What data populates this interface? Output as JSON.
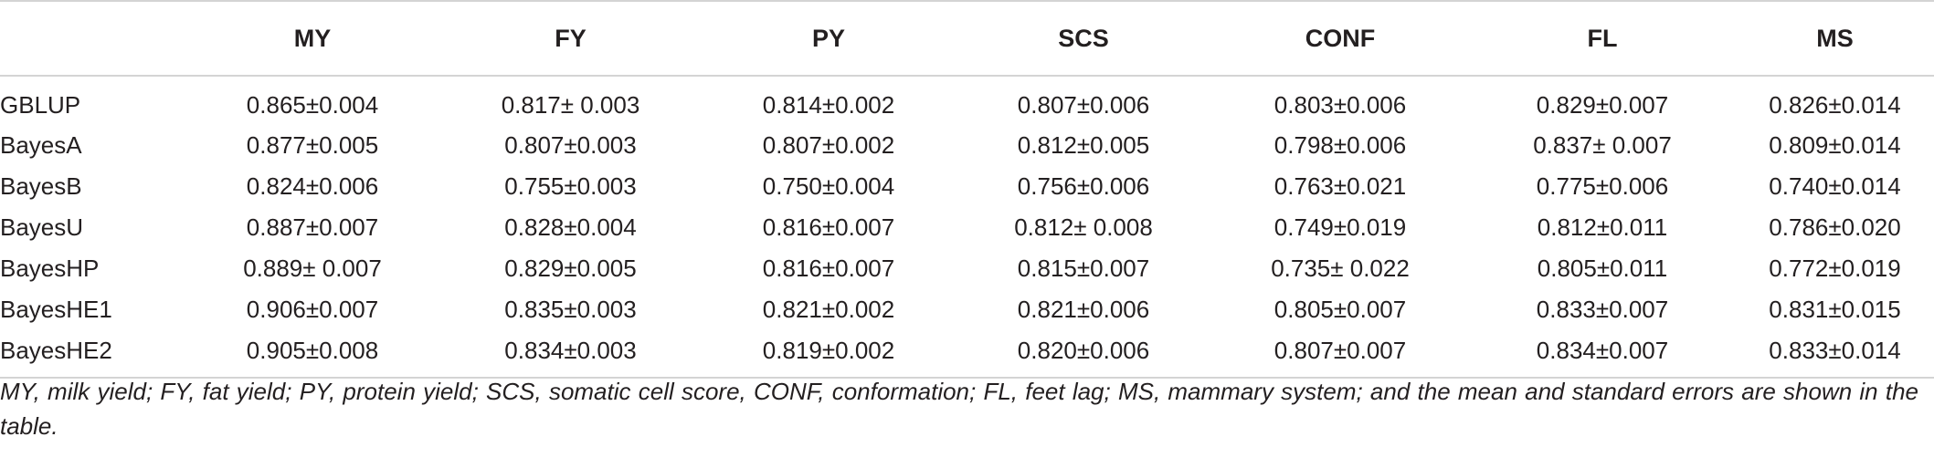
{
  "table": {
    "columns": [
      "",
      "MY",
      "FY",
      "PY",
      "SCS",
      "CONF",
      "FL",
      "MS"
    ],
    "rows": [
      {
        "model": "GBLUP",
        "values": [
          "0.865±0.004",
          "0.817± 0.003",
          "0.814±0.002",
          "0.807±0.006",
          "0.803±0.006",
          "0.829±0.007",
          "0.826±0.014"
        ]
      },
      {
        "model": "BayesA",
        "values": [
          "0.877±0.005",
          "0.807±0.003",
          "0.807±0.002",
          "0.812±0.005",
          "0.798±0.006",
          "0.837± 0.007",
          "0.809±0.014"
        ]
      },
      {
        "model": "BayesB",
        "values": [
          "0.824±0.006",
          "0.755±0.003",
          "0.750±0.004",
          "0.756±0.006",
          "0.763±0.021",
          "0.775±0.006",
          "0.740±0.014"
        ]
      },
      {
        "model": "BayesU",
        "values": [
          "0.887±0.007",
          "0.828±0.004",
          "0.816±0.007",
          "0.812± 0.008",
          "0.749±0.019",
          "0.812±0.011",
          "0.786±0.020"
        ]
      },
      {
        "model": "BayesHP",
        "values": [
          "0.889± 0.007",
          "0.829±0.005",
          "0.816±0.007",
          "0.815±0.007",
          "0.735± 0.022",
          "0.805±0.011",
          "0.772±0.019"
        ]
      },
      {
        "model": "BayesHE1",
        "values": [
          "0.906±0.007",
          "0.835±0.003",
          "0.821±0.002",
          "0.821±0.006",
          "0.805±0.007",
          "0.833±0.007",
          "0.831±0.015"
        ]
      },
      {
        "model": "BayesHE2",
        "values": [
          "0.905±0.008",
          "0.834±0.003",
          "0.819±0.002",
          "0.820±0.006",
          "0.807±0.007",
          "0.834±0.007",
          "0.833±0.014"
        ]
      }
    ]
  },
  "footnote": "MY, milk yield; FY, fat yield; PY, protein yield; SCS, somatic cell score, CONF, conformation; FL, feet lag; MS, mammary system; and the mean and standard errors are shown in the table."
}
